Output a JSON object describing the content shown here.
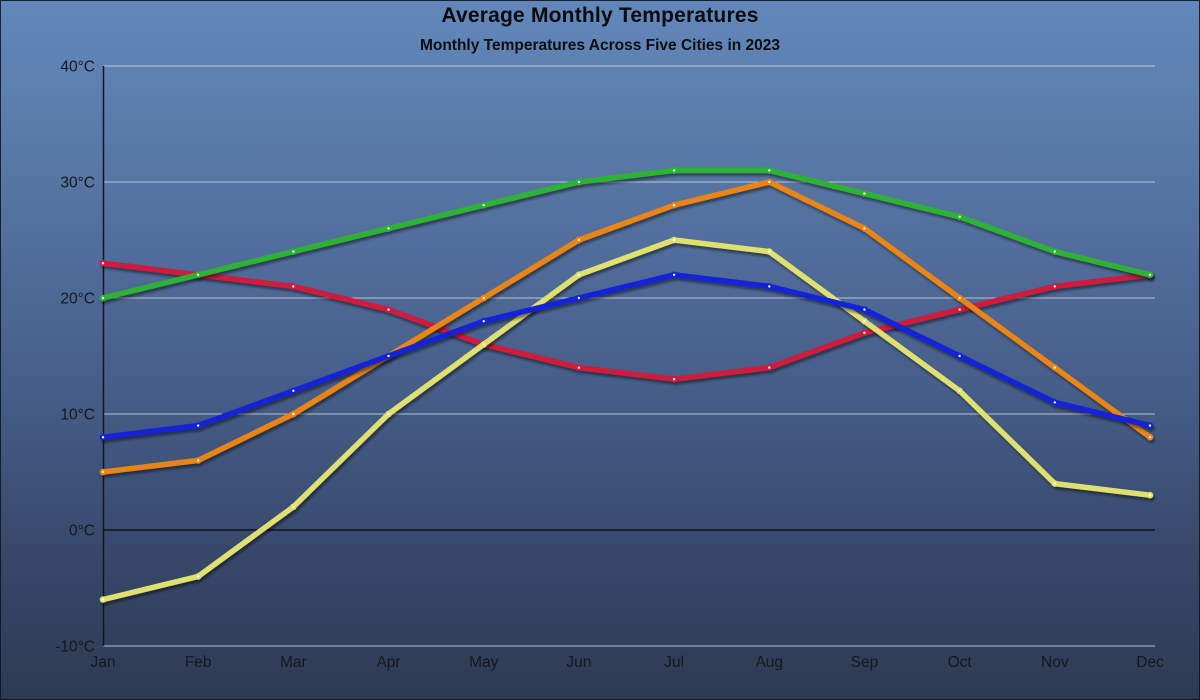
{
  "chart": {
    "title": "Average Monthly Temperatures",
    "subtitle": "Monthly Temperatures Across Five Cities in 2023"
  },
  "chart_data": {
    "type": "line",
    "title": "Average Monthly Temperatures",
    "subtitle": "Monthly Temperatures Across Five Cities in 2023",
    "categories": [
      "Jan",
      "Feb",
      "Mar",
      "Apr",
      "May",
      "Jun",
      "Jul",
      "Aug",
      "Sep",
      "Oct",
      "Nov",
      "Dec"
    ],
    "unit": "°C",
    "ylim": [
      -10,
      40
    ],
    "y_tick_values": [
      40,
      30,
      20,
      10,
      0,
      -10
    ],
    "y_tick_labels": [
      "40°C",
      "30°C",
      "20°C",
      "10°C",
      "0°C",
      "-10°C"
    ],
    "grid": true,
    "legend": "none",
    "marker": "dot",
    "series": [
      {
        "name": "red-line",
        "color": "#CE1A3E",
        "values": [
          23,
          22,
          21,
          19,
          16,
          14,
          13,
          14,
          17,
          19,
          21,
          22
        ]
      },
      {
        "name": "green-line",
        "color": "#2EB234",
        "values": [
          20,
          22,
          24,
          26,
          28,
          30,
          31,
          31,
          29,
          27,
          24,
          22
        ]
      },
      {
        "name": "orange-line",
        "color": "#E98412",
        "values": [
          5,
          6,
          10,
          15,
          20,
          25,
          28,
          30,
          26,
          20,
          14,
          8
        ]
      },
      {
        "name": "yellow-green-line",
        "color": "#DFE06F",
        "values": [
          -6,
          -4,
          2,
          10,
          16,
          22,
          25,
          24,
          18,
          12,
          4,
          3
        ]
      },
      {
        "name": "blue-line",
        "color": "#1222D8",
        "values": [
          8,
          9,
          12,
          15,
          18,
          20,
          22,
          21,
          19,
          15,
          11,
          9
        ]
      }
    ],
    "style": {
      "axis_color": "#10161f",
      "zero_line_color": "#10161f",
      "gridline_color": "#CBD3DD",
      "label_color": "#16181c",
      "background_top": "#6287BB",
      "background_bottom": "#2D3A52"
    }
  }
}
